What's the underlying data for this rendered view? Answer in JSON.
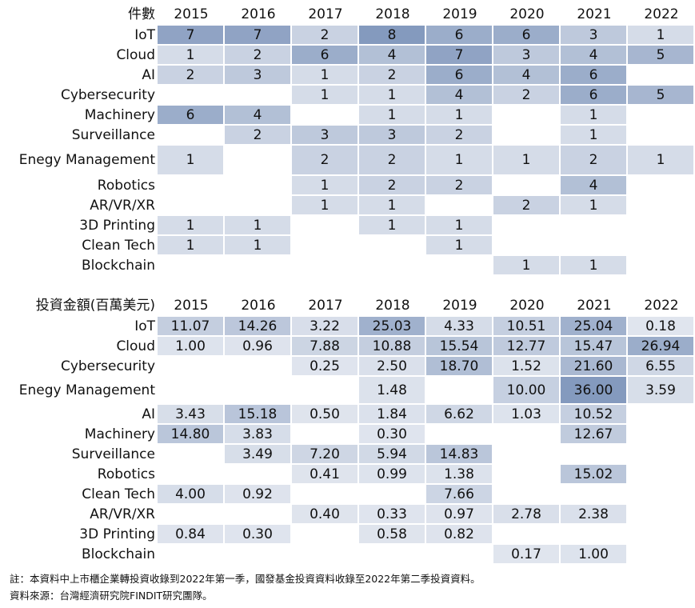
{
  "tables": [
    {
      "corner": "件數",
      "columns": [
        "2015",
        "2016",
        "2017",
        "2018",
        "2019",
        "2020",
        "2021",
        "2022"
      ],
      "rows": [
        {
          "label": "IoT",
          "cells": [
            7,
            7,
            2,
            8,
            6,
            6,
            3,
            1
          ]
        },
        {
          "label": "Cloud",
          "cells": [
            1,
            2,
            6,
            4,
            7,
            3,
            4,
            5
          ]
        },
        {
          "label": "AI",
          "cells": [
            2,
            3,
            1,
            2,
            6,
            4,
            6,
            null
          ]
        },
        {
          "label": "Cybersecurity",
          "cells": [
            null,
            null,
            1,
            1,
            4,
            2,
            6,
            5
          ]
        },
        {
          "label": "Machinery",
          "cells": [
            6,
            4,
            null,
            1,
            1,
            null,
            1,
            null
          ]
        },
        {
          "label": "Surveillance",
          "cells": [
            null,
            2,
            3,
            3,
            2,
            null,
            1,
            null
          ]
        },
        {
          "label": "Enegy Management",
          "cells": [
            1,
            null,
            2,
            2,
            1,
            1,
            2,
            1
          ]
        },
        {
          "label": "Robotics",
          "cells": [
            null,
            null,
            1,
            2,
            2,
            null,
            4,
            null
          ]
        },
        {
          "label": "AR/VR/XR",
          "cells": [
            null,
            null,
            1,
            1,
            null,
            2,
            1,
            null
          ]
        },
        {
          "label": "3D Printing",
          "cells": [
            1,
            1,
            null,
            1,
            1,
            null,
            null,
            null
          ]
        },
        {
          "label": "Clean Tech",
          "cells": [
            1,
            1,
            null,
            null,
            1,
            null,
            null,
            null
          ]
        },
        {
          "label": "Blockchain",
          "cells": [
            null,
            null,
            null,
            null,
            null,
            1,
            1,
            null
          ]
        }
      ]
    },
    {
      "corner": "投資金額(百萬美元)",
      "columns": [
        "2015",
        "2016",
        "2017",
        "2018",
        "2019",
        "2020",
        "2021",
        "2022"
      ],
      "rows": [
        {
          "label": "IoT",
          "cells": [
            "11.07",
            "14.26",
            "3.22",
            "25.03",
            "4.33",
            "10.51",
            "25.04",
            "0.18"
          ]
        },
        {
          "label": "Cloud",
          "cells": [
            "1.00",
            "0.96",
            "7.88",
            "10.88",
            "15.54",
            "12.77",
            "15.47",
            "26.94"
          ]
        },
        {
          "label": "Cybersecurity",
          "cells": [
            null,
            null,
            "0.25",
            "2.50",
            "18.70",
            "1.52",
            "21.60",
            "6.55"
          ]
        },
        {
          "label": "Enegy Management",
          "cells": [
            null,
            null,
            null,
            "1.48",
            null,
            "10.00",
            "36.00",
            "3.59"
          ]
        },
        {
          "label": "AI",
          "cells": [
            "3.43",
            "15.18",
            "0.50",
            "1.84",
            "6.62",
            "1.03",
            "10.52",
            null
          ]
        },
        {
          "label": "Machinery",
          "cells": [
            "14.80",
            "3.83",
            null,
            "0.30",
            null,
            null,
            "12.67",
            null
          ]
        },
        {
          "label": "Surveillance",
          "cells": [
            null,
            "3.49",
            "7.20",
            "5.94",
            "14.83",
            null,
            null,
            null
          ]
        },
        {
          "label": "Robotics",
          "cells": [
            null,
            null,
            "0.41",
            "0.99",
            "1.38",
            null,
            "15.02",
            null
          ]
        },
        {
          "label": "Clean Tech",
          "cells": [
            "4.00",
            "0.92",
            null,
            null,
            "7.66",
            null,
            null,
            null
          ]
        },
        {
          "label": "AR/VR/XR",
          "cells": [
            null,
            null,
            "0.40",
            "0.33",
            "0.97",
            "2.78",
            "2.38",
            null
          ]
        },
        {
          "label": "3D Printing",
          "cells": [
            "0.84",
            "0.30",
            null,
            "0.58",
            "0.82",
            null,
            null,
            null
          ]
        },
        {
          "label": "Blockchain",
          "cells": [
            null,
            null,
            null,
            null,
            null,
            "0.17",
            "1.00",
            null
          ]
        }
      ]
    }
  ],
  "notes": [
    "註：本資料中上市櫃企業轉投資收錄到2022年第一季，國發基金投資資料收錄至2022年第二季投資資料。",
    "資料來源：台灣經濟研究院FINDIT研究團隊。"
  ]
}
